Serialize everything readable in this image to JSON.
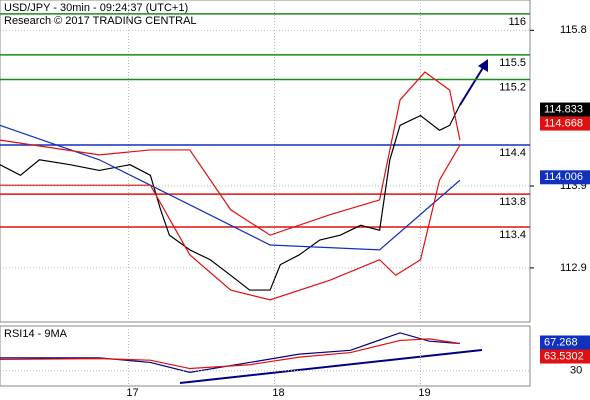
{
  "chart_data": {
    "type": "line",
    "title": "USD/JPY - 30min - 09:24:37 (UTC+1)",
    "subtitle": "Research © 2017 TRADING CENTRAL",
    "xlim": [
      16.12,
      19.75
    ],
    "xticks": [
      17,
      18,
      19
    ],
    "ylim": [
      112.24,
      116.17
    ],
    "yticks": [
      115.8,
      113.9,
      112.9
    ],
    "grid": true,
    "levels": [
      {
        "value": 116,
        "color": "#1a8a1a"
      },
      {
        "value": 115.5,
        "color": "#1a8a1a"
      },
      {
        "value": 115.2,
        "color": "#1a8a1a"
      },
      {
        "value": 114.4,
        "color": "#1030c0"
      },
      {
        "value": 113.8,
        "color": "#e01010"
      },
      {
        "value": 113.4,
        "color": "#e01010"
      }
    ],
    "price_labels": [
      {
        "value": 114.833,
        "color": "#000000"
      },
      {
        "value": 114.668,
        "color": "#e01010"
      },
      {
        "value": 114.006,
        "color": "#1030c0"
      }
    ],
    "series": [
      {
        "color": "#000000",
        "x": [
          16.12,
          16.26,
          16.39,
          16.6,
          16.8,
          17.01,
          17.15,
          17.22,
          17.28,
          17.42,
          17.56,
          17.7,
          17.83,
          17.97,
          18.04,
          18.17,
          18.31,
          18.45,
          18.59,
          18.72,
          18.79,
          18.86,
          19.0,
          19.13,
          19.2,
          19.27
        ],
        "values": [
          114.16,
          114.03,
          114.22,
          114.16,
          114.09,
          114.16,
          114.03,
          113.61,
          113.3,
          113.12,
          113.0,
          112.81,
          112.63,
          112.63,
          112.94,
          113.06,
          113.24,
          113.3,
          113.42,
          113.36,
          114.22,
          114.64,
          114.76,
          114.58,
          114.64,
          114.89
        ]
      },
      {
        "color": "#1030c0",
        "x": [
          16.12,
          16.8,
          17.42,
          17.97,
          18.72,
          19.27
        ],
        "values": [
          114.64,
          114.22,
          113.67,
          113.18,
          113.12,
          113.97
        ]
      },
      {
        "color": "#e01010",
        "x": [
          16.12,
          16.8,
          17.15,
          17.42,
          17.7,
          17.97,
          18.38,
          18.72,
          18.86,
          19.03,
          19.2,
          19.27
        ],
        "values": [
          114.46,
          114.28,
          114.34,
          114.34,
          113.61,
          113.3,
          113.55,
          113.73,
          114.95,
          115.29,
          115.07,
          114.46
        ]
      },
      {
        "color": "#e01010",
        "x": [
          16.12,
          16.8,
          17.15,
          17.42,
          17.7,
          17.97,
          18.38,
          18.72,
          18.83,
          19.0,
          19.13,
          19.27
        ],
        "values": [
          113.91,
          113.91,
          113.91,
          113.06,
          112.63,
          112.51,
          112.75,
          113.0,
          112.81,
          113.0,
          113.97,
          114.4
        ]
      }
    ],
    "rsi": {
      "title": "RSI14 - 9MA",
      "ylim": [
        10,
        89
      ],
      "yticks": [
        30
      ],
      "labels": [
        {
          "value": 67.268,
          "color": "#1030c0"
        },
        {
          "value": 63.5302,
          "color": "#e01010"
        }
      ],
      "series": [
        {
          "color": "#000080",
          "x": [
            16.12,
            16.8,
            17.15,
            17.42,
            17.83,
            18.17,
            18.52,
            18.86,
            19.06,
            19.27
          ],
          "values": [
            47,
            47,
            41,
            28,
            41,
            52,
            57,
            80,
            69,
            66
          ]
        },
        {
          "color": "#e01010",
          "x": [
            16.12,
            16.8,
            17.15,
            17.42,
            17.83,
            18.17,
            18.52,
            18.86,
            19.06,
            19.27
          ],
          "values": [
            45,
            46,
            44,
            33,
            38,
            48,
            54,
            70,
            72,
            66
          ]
        }
      ]
    }
  }
}
